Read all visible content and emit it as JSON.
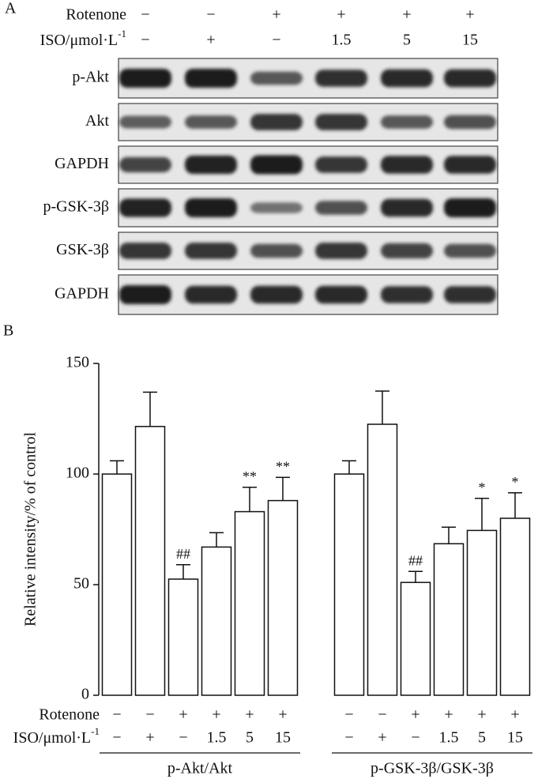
{
  "panel_a": {
    "label": "A",
    "rotenone_label": "Rotenone",
    "iso_label": "ISO/μmol·L",
    "iso_sup": "-1",
    "rotenone": [
      "−",
      "−",
      "+",
      "+",
      "+",
      "+"
    ],
    "iso": [
      "−",
      "+",
      "−",
      "1.5",
      "5",
      "15"
    ],
    "blots": [
      "p-Akt",
      "Akt",
      "GAPDH",
      "p-GSK-3β",
      "GSK-3β",
      "GAPDH"
    ]
  },
  "chart_data": {
    "type": "bar",
    "label": "B",
    "ylabel": "Relative intensity/% of control",
    "ylim": [
      0,
      150
    ],
    "yticks": [
      0,
      50,
      100,
      150
    ],
    "color": "#ffffff",
    "rotenone_label": "Rotenone",
    "iso_label": "ISO/μmol·L",
    "iso_sup": "-1",
    "rotenone": [
      "−",
      "−",
      "+",
      "+",
      "+",
      "+"
    ],
    "iso": [
      "−",
      "+",
      "−",
      "1.5",
      "5",
      "15"
    ],
    "groups": [
      {
        "name": "p-Akt/Akt",
        "values": [
          100,
          121.5,
          52.5,
          67,
          83,
          88
        ],
        "errors": [
          6,
          15.5,
          6.5,
          6.5,
          11,
          10.5
        ],
        "annotations": [
          null,
          null,
          "##",
          null,
          "**",
          "**"
        ]
      },
      {
        "name": "p-GSK-3β/GSK-3β",
        "values": [
          100,
          122.5,
          51,
          68.5,
          74.5,
          80
        ],
        "errors": [
          6,
          15,
          5,
          7.5,
          14.5,
          11.5
        ],
        "annotations": [
          null,
          null,
          "##",
          null,
          "*",
          "*"
        ]
      }
    ]
  }
}
